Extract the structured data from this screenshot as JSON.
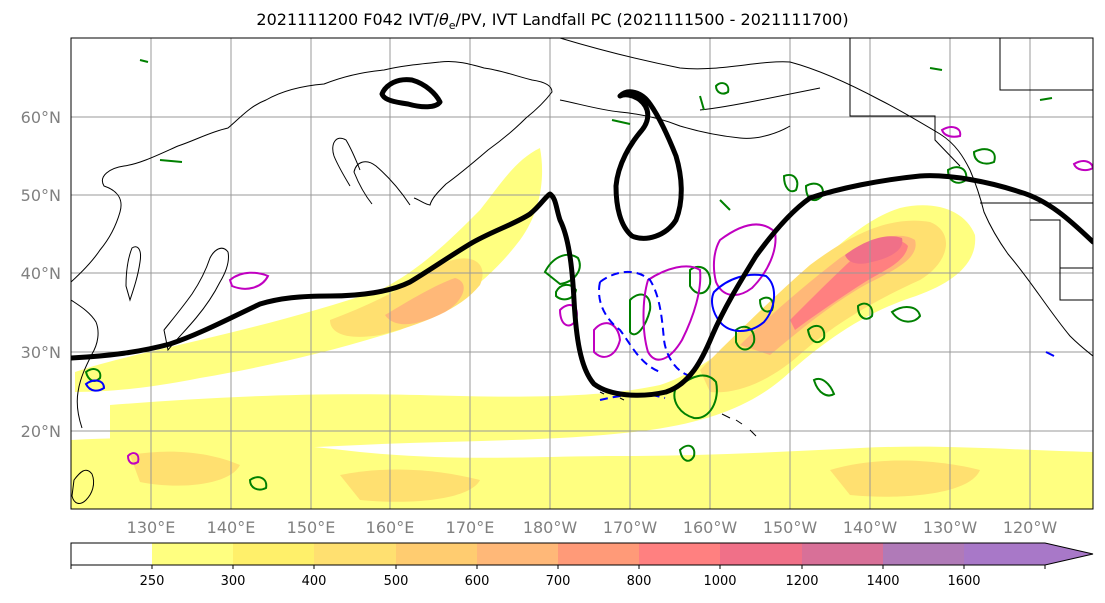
{
  "title": {
    "main": "2021111200 F042 IVT/",
    "theta": "θ",
    "theta_sub": "e",
    "rest": "/PV, IVT Landfall PC (2021111500 - 2021111700)"
  },
  "map": {
    "lat_labels": [
      "60°N",
      "50°N",
      "40°N",
      "30°N",
      "20°N"
    ],
    "lat_values": [
      60,
      50,
      40,
      30,
      20
    ],
    "lon_labels": [
      "130°E",
      "140°E",
      "150°E",
      "160°E",
      "170°E",
      "180°W",
      "170°W",
      "160°W",
      "150°W",
      "140°W",
      "130°W",
      "120°W"
    ],
    "lon_values": [
      130,
      140,
      150,
      160,
      170,
      180,
      190,
      200,
      210,
      220,
      230,
      240
    ],
    "lat_range": [
      10,
      70
    ],
    "lon_range": [
      120,
      248
    ],
    "grid": true
  },
  "colorbar": {
    "ticks": [
      "250",
      "300",
      "400",
      "500",
      "600",
      "700",
      "800",
      "1000",
      "1200",
      "1400",
      "1600"
    ],
    "colors": [
      "#ffffff",
      "#ffff80",
      "#fff06a",
      "#ffe070",
      "#ffcc70",
      "#ffb878",
      "#ff9a78",
      "#ff8080",
      "#f07088",
      "#d87098",
      "#b07ab8",
      "#a878c8"
    ],
    "extend": "max"
  },
  "legend_colors": {
    "ivt_low": "#ffff80",
    "ivt_high": "#f07088",
    "pc_contour": "#000000",
    "pv_contour": "#008000",
    "theta_pos": "#c000c0",
    "theta_neg": "#0000ff"
  }
}
